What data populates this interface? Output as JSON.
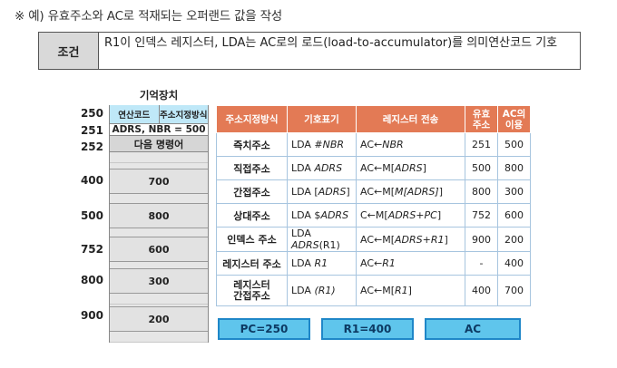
{
  "heading": "※ 예) 유효주소와 AC로 적재되는 오퍼랜드 값을 작성",
  "condition": {
    "label": "조건",
    "text": "R1이 인덱스 레지스터, LDA는 AC로의 로드(load-to-accumulator)를 의미연산코드 기호"
  },
  "memory": {
    "title": "기억장치",
    "header": [
      "연산코드",
      "주소지정방식"
    ],
    "rows": [
      {
        "addr": "250",
        "value": ""
      },
      {
        "addr": "251",
        "value": "ADRS, NBR = 500"
      },
      {
        "addr": "252",
        "value": "다음 명령어"
      },
      {
        "addr": "400",
        "value": "700"
      },
      {
        "addr": "500",
        "value": "800"
      },
      {
        "addr": "752",
        "value": "600"
      },
      {
        "addr": "800",
        "value": "300"
      },
      {
        "addr": "900",
        "value": "200"
      }
    ]
  },
  "table": {
    "headers": [
      "주소지정방식",
      "기호표기",
      "레지스터 전송",
      "유효\n주소",
      "AC의\n이용"
    ],
    "rows": [
      {
        "mode": "즉치주소",
        "sym_pre": "LDA #",
        "sym_it": "NBR",
        "sym_post": "",
        "xfer_pre": "AC←",
        "xfer_it": "NBR",
        "xfer_post": "",
        "ea": "251",
        "ac": "500"
      },
      {
        "mode": "직접주소",
        "sym_pre": "LDA ",
        "sym_it": "ADRS",
        "sym_post": "",
        "xfer_pre": "AC←M[",
        "xfer_it": "ADRS",
        "xfer_post": "]",
        "ea": "500",
        "ac": "800"
      },
      {
        "mode": "간접주소",
        "sym_pre": "LDA [",
        "sym_it": "ADRS",
        "sym_post": "]",
        "xfer_pre": "AC←M[",
        "xfer_it": "M[ADRS]",
        "xfer_post": "]",
        "ea": "800",
        "ac": "300"
      },
      {
        "mode": "상대주소",
        "sym_pre": "LDA $",
        "sym_it": "ADRS",
        "sym_post": "",
        "xfer_pre": "C←M[",
        "xfer_it": "ADRS+PC",
        "xfer_post": "]",
        "ea": "752",
        "ac": "600"
      },
      {
        "mode": "인덱스 주소",
        "sym_pre": "LDA ",
        "sym_it": "ADRS",
        "sym_post": "(R1)",
        "xfer_pre": "AC←M[",
        "xfer_it": "ADRS+R1",
        "xfer_post": "]",
        "ea": "900",
        "ac": "200"
      },
      {
        "mode": "레지스터 주소",
        "sym_pre": "LDA ",
        "sym_it": "R1",
        "sym_post": "",
        "xfer_pre": "AC←",
        "xfer_it": "R1",
        "xfer_post": "",
        "ea": "-",
        "ac": "400"
      },
      {
        "mode": "레지스터\n간접주소",
        "sym_pre": "LDA ",
        "sym_it": "(R1)",
        "sym_post": "",
        "xfer_pre": "AC←M[",
        "xfer_it": "R1",
        "xfer_post": "]",
        "ea": "400",
        "ac": "700"
      }
    ]
  },
  "registers": [
    "PC=250",
    "R1=400",
    "AC"
  ]
}
